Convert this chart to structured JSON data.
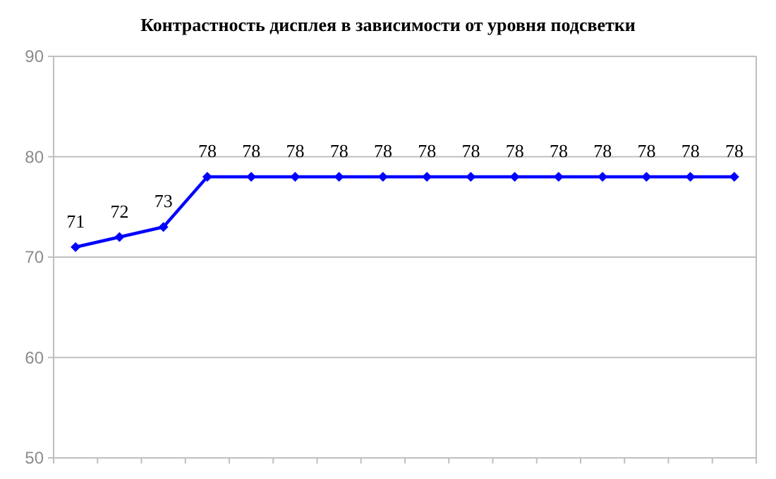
{
  "chart_data": {
    "type": "line",
    "title": "Контрастность дисплея в зависимости от уровня подсветки",
    "categories": [
      null,
      null,
      null,
      null,
      null,
      null,
      null,
      null,
      null,
      null,
      null,
      null,
      null,
      null,
      null,
      null
    ],
    "series": [
      {
        "color": "#0000ff",
        "values": [
          71,
          72,
          73,
          78,
          78,
          78,
          78,
          78,
          78,
          78,
          78,
          78,
          78,
          78,
          78,
          78
        ]
      }
    ],
    "ylim": [
      50,
      90
    ],
    "yticks": [
      50,
      60,
      70,
      80,
      90
    ],
    "grid": "y",
    "marker": "diamond",
    "line_style": "solid",
    "data_labels": true
  }
}
